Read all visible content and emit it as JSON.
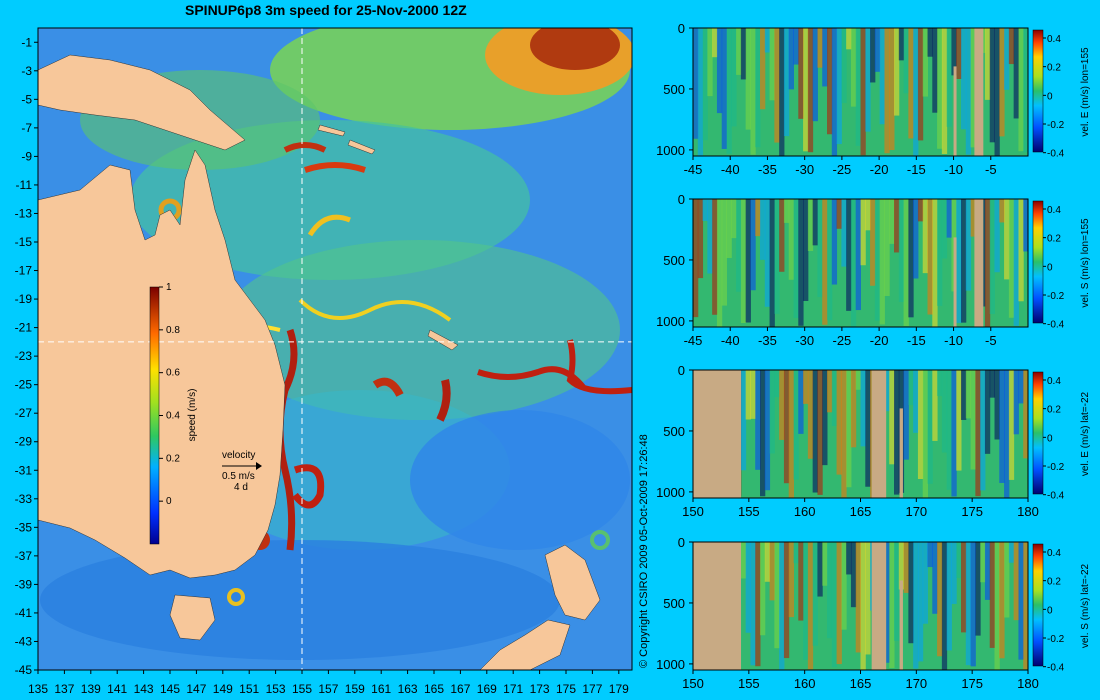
{
  "title": "SPINUP6p8 3m speed for 25-Nov-2000 12Z",
  "copyright": "© Copyright CSIRO 2009   05-Oct-2009 17:26:48",
  "velocity_key": {
    "label": "velocity",
    "speed": "0.5 m/s",
    "time": "4 d"
  },
  "colors": {
    "background": "#00ccff",
    "land": "#f7c79a",
    "section_land": "#c8aa84",
    "ocean_base": "#3a8fe6",
    "section_line": "#ffffff"
  },
  "chart_data": [
    {
      "type": "heatmap",
      "name": "map",
      "title": "SPINUP6p8 3m speed for 25-Nov-2000 12Z",
      "x_ticks": [
        "135",
        "137",
        "139",
        "141",
        "143",
        "145",
        "147",
        "149",
        "151",
        "153",
        "155",
        "157",
        "159",
        "161",
        "163",
        "165",
        "167",
        "169",
        "171",
        "173",
        "175",
        "177",
        "179"
      ],
      "y_ticks": [
        "-1",
        "-3",
        "-5",
        "-7",
        "-9",
        "-11",
        "-13",
        "-15",
        "-17",
        "-19",
        "-21",
        "-23",
        "-25",
        "-27",
        "-29",
        "-31",
        "-33",
        "-35",
        "-37",
        "-39",
        "-41",
        "-43",
        "-45"
      ],
      "xlim": [
        135,
        180
      ],
      "ylim": [
        -45,
        0
      ],
      "section_lon": 155,
      "section_lat": -22,
      "colorbar": {
        "label": "speed (m/s)",
        "ticks": [
          "0",
          "0.2",
          "0.4",
          "0.6",
          "0.8",
          "1"
        ],
        "range": [
          -0.2,
          1
        ]
      }
    },
    {
      "type": "heatmap",
      "name": "section-1",
      "colorbar_label": "vel. E (m/s) lon=155",
      "x_ticks": [
        "-45",
        "-40",
        "-35",
        "-30",
        "-25",
        "-20",
        "-15",
        "-10",
        "-5"
      ],
      "y_ticks": [
        "0",
        "500",
        "1000"
      ],
      "colorbar_ticks": [
        "0.4",
        "0.2",
        "0",
        "-0.2",
        "-0.4"
      ],
      "xlim": [
        -45,
        0
      ],
      "ylim": [
        1050,
        0
      ]
    },
    {
      "type": "heatmap",
      "name": "section-2",
      "colorbar_label": "vel. S (m/s) lon=155",
      "x_ticks": [
        "-45",
        "-40",
        "-35",
        "-30",
        "-25",
        "-20",
        "-15",
        "-10",
        "-5"
      ],
      "y_ticks": [
        "0",
        "500",
        "1000"
      ],
      "colorbar_ticks": [
        "0.4",
        "0.2",
        "0",
        "-0.2",
        "-0.4"
      ],
      "xlim": [
        -45,
        0
      ],
      "ylim": [
        1050,
        0
      ]
    },
    {
      "type": "heatmap",
      "name": "section-3",
      "colorbar_label": "vel. E (m/s) lat=-22",
      "x_ticks": [
        "150",
        "155",
        "160",
        "165",
        "170",
        "175",
        "180"
      ],
      "y_ticks": [
        "0",
        "500",
        "1000"
      ],
      "colorbar_ticks": [
        "0.4",
        "0.2",
        "0",
        "-0.2",
        "-0.4"
      ],
      "xlim": [
        150,
        180
      ],
      "ylim": [
        1050,
        0
      ]
    },
    {
      "type": "heatmap",
      "name": "section-4",
      "colorbar_label": "vel. S (m/s) lat=-22",
      "x_ticks": [
        "150",
        "155",
        "160",
        "165",
        "170",
        "175",
        "180"
      ],
      "y_ticks": [
        "0",
        "500",
        "1000"
      ],
      "colorbar_ticks": [
        "0.4",
        "0.2",
        "0",
        "-0.2",
        "-0.4"
      ],
      "xlim": [
        150,
        180
      ],
      "ylim": [
        1050,
        0
      ]
    }
  ]
}
